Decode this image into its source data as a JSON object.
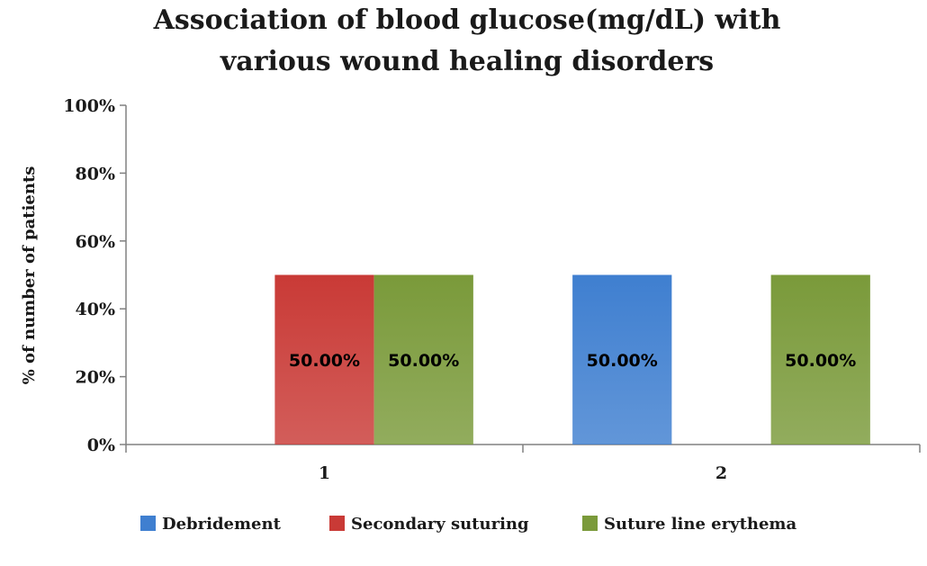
{
  "chart_data": {
    "type": "bar",
    "title_lines": [
      "Association of blood glucose(mg/dL) with",
      "various wound healing disorders"
    ],
    "ylabel": "% of number of patients",
    "xlabel": "",
    "categories": [
      "1",
      "2"
    ],
    "ylim": [
      0,
      100
    ],
    "yticks": [
      "0%",
      "20%",
      "40%",
      "60%",
      "80%",
      "100%"
    ],
    "grid": false,
    "legend_position": "bottom",
    "series": [
      {
        "name": "Debridement",
        "color": "#3f7fd0",
        "values": [
          0,
          50
        ],
        "labels": [
          "",
          "50.00%"
        ]
      },
      {
        "name": "Secondary suturing",
        "color": "#c93a36",
        "values": [
          50,
          0
        ],
        "labels": [
          "50.00%",
          ""
        ]
      },
      {
        "name": "Suture line erythema",
        "color": "#7a9a3a",
        "values": [
          50,
          50
        ],
        "labels": [
          "50.00%",
          "50.00%"
        ]
      }
    ]
  }
}
